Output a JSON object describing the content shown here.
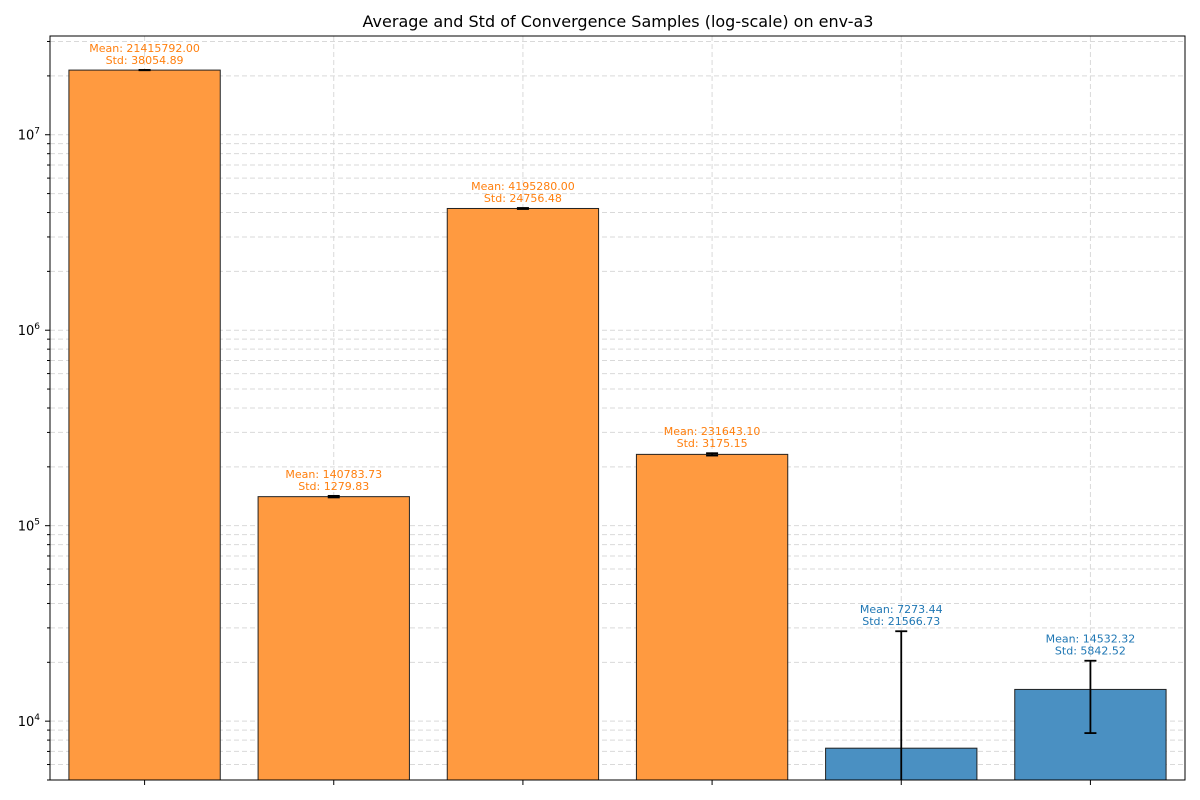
{
  "chart_data": {
    "type": "bar",
    "title": "Average and Std of Convergence Samples (log-scale) on env-a3",
    "xlabel": "",
    "ylabel": "",
    "yscale": "log",
    "ylim": [
      5000,
      32000000
    ],
    "grid": true,
    "categories": [
      "",
      "",
      "",
      "",
      "",
      ""
    ],
    "values": [
      21415792.0,
      140783.73,
      4195280.0,
      231643.1,
      7273.44,
      14532.32
    ],
    "std": [
      38054.89,
      1279.83,
      24756.48,
      3175.15,
      21566.73,
      5842.52
    ],
    "mean_labels": [
      "Mean: 21415792.00",
      "Mean: 140783.73",
      "Mean: 4195280.00",
      "Mean: 231643.10",
      "Mean: 7273.44",
      "Mean: 14532.32"
    ],
    "std_labels": [
      "Std: 38054.89",
      "Std: 1279.83",
      "Std: 24756.48",
      "Std: 3175.15",
      "Std: 21566.73",
      "Std: 5842.52"
    ],
    "bar_colors": [
      "#ff9a40",
      "#ff9a40",
      "#ff9a40",
      "#ff9a40",
      "#4a90c2",
      "#4a90c2"
    ],
    "label_colors": [
      "#ff7f0e",
      "#ff7f0e",
      "#ff7f0e",
      "#ff7f0e",
      "#1f77b4",
      "#1f77b4"
    ],
    "y_ticks": [
      {
        "value": 10000,
        "base": "10",
        "exp": "4"
      },
      {
        "value": 100000,
        "base": "10",
        "exp": "5"
      },
      {
        "value": 1000000,
        "base": "10",
        "exp": "6"
      },
      {
        "value": 10000000,
        "base": "10",
        "exp": "7"
      }
    ]
  }
}
